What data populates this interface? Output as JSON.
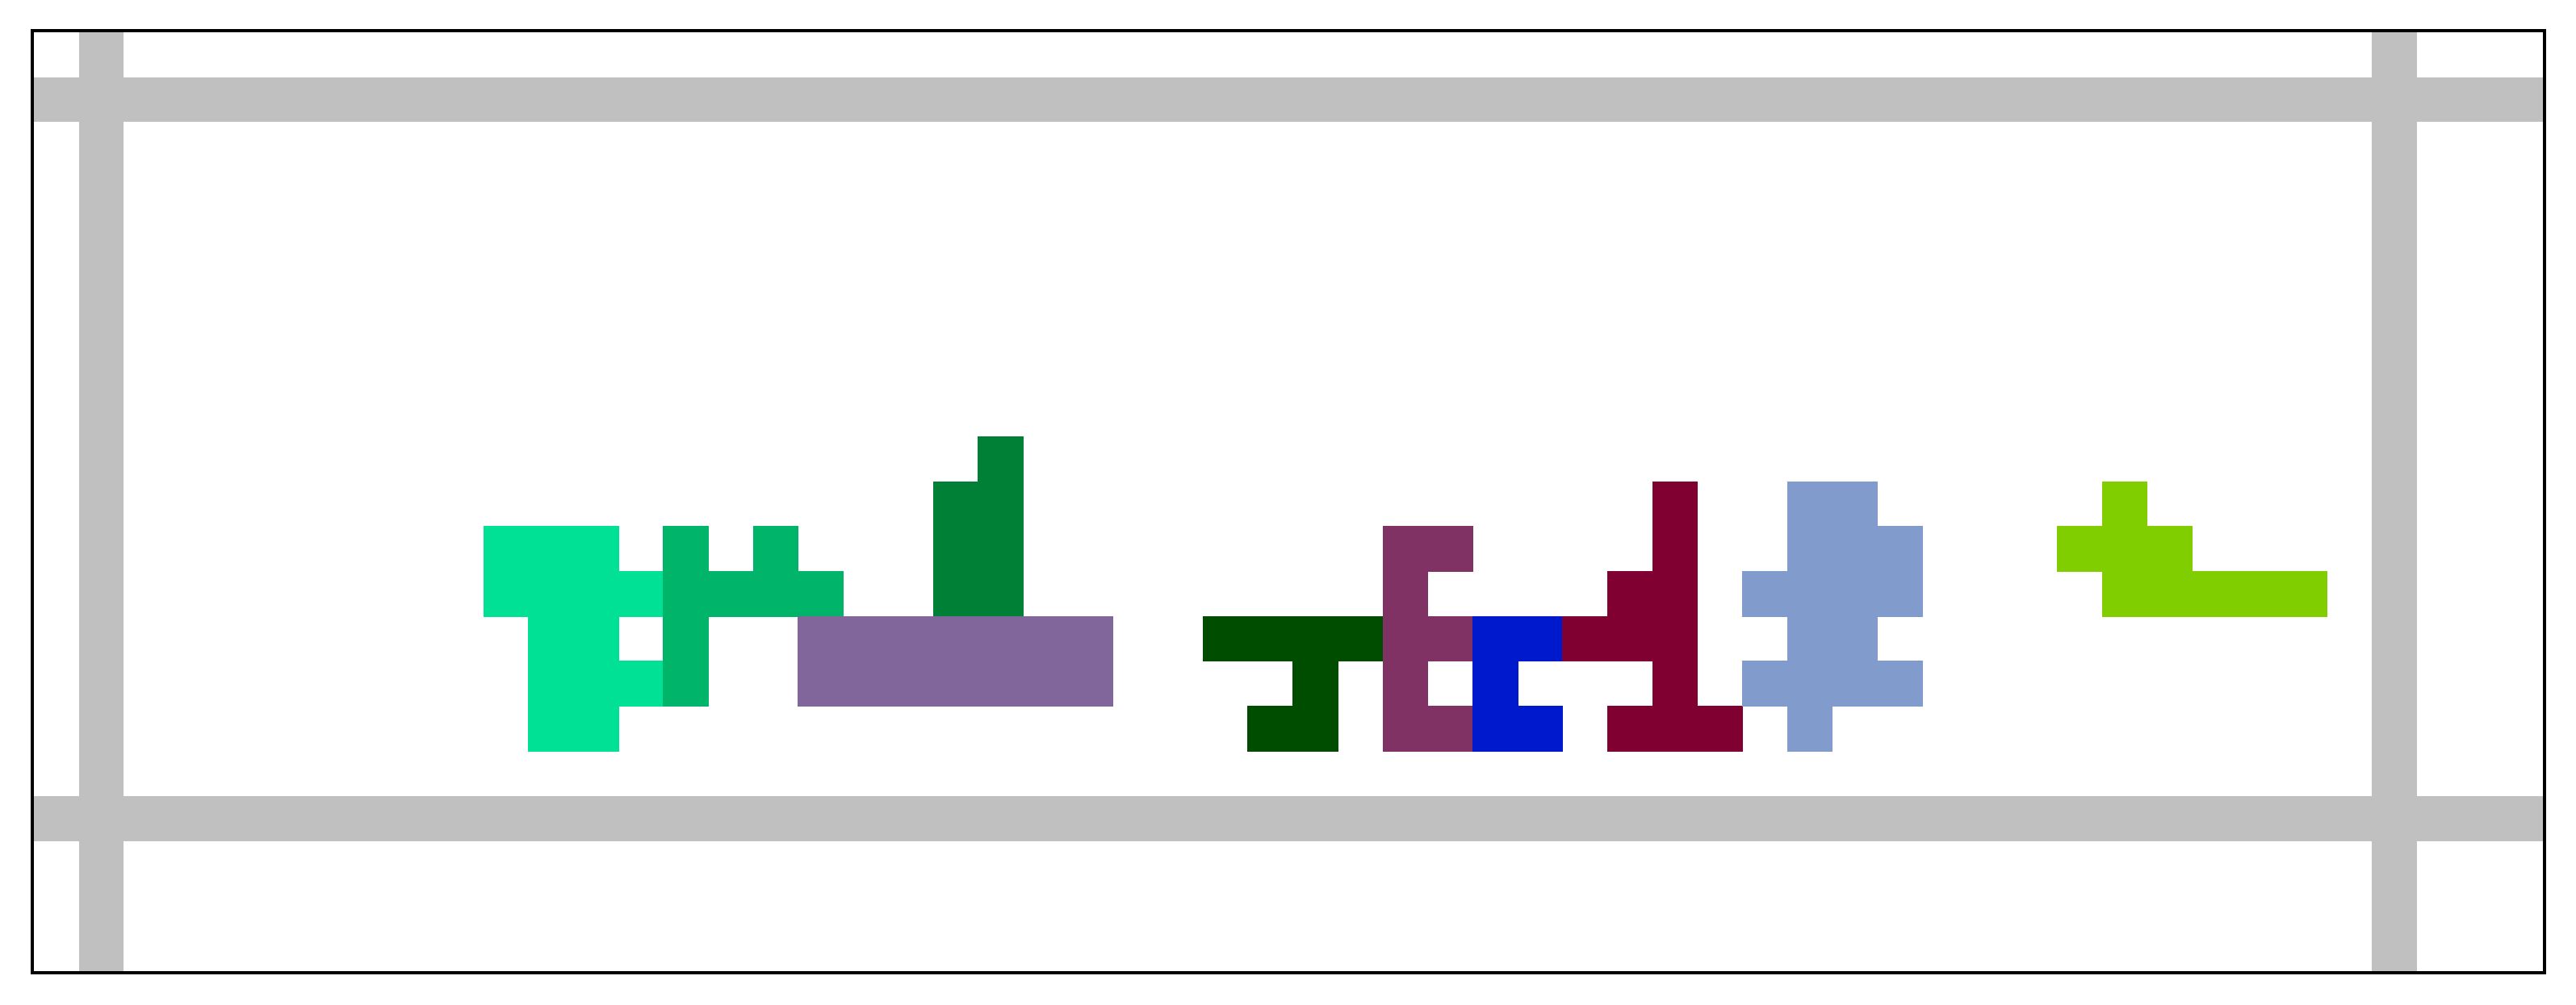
{
  "puzzle": {
    "background": "#ffffff",
    "frame_color": "#000000",
    "grid_line_color": "#c0c0c0",
    "grid": {
      "columns": 56,
      "rows": 21
    },
    "grid_lines": {
      "vertical_after_columns": [
        2,
        53
      ],
      "horizontal_after_rows": [
        2,
        18
      ]
    },
    "pieces": [
      {
        "id": "mint",
        "color": "#00e196",
        "cells": [
          [
            10,
            11
          ],
          [
            11,
            11
          ],
          [
            12,
            11
          ],
          [
            10,
            12
          ],
          [
            11,
            12
          ],
          [
            12,
            12
          ],
          [
            13,
            12
          ],
          [
            11,
            13
          ],
          [
            12,
            13
          ],
          [
            11,
            14
          ],
          [
            12,
            14
          ],
          [
            13,
            14
          ],
          [
            11,
            15
          ],
          [
            12,
            15
          ]
        ]
      },
      {
        "id": "jade",
        "color": "#00b46a",
        "cells": [
          [
            14,
            11
          ],
          [
            16,
            11
          ],
          [
            14,
            12
          ],
          [
            15,
            12
          ],
          [
            16,
            12
          ],
          [
            17,
            12
          ],
          [
            14,
            13
          ],
          [
            14,
            14
          ]
        ]
      },
      {
        "id": "forest-green",
        "color": "#008037",
        "cells": [
          [
            21,
            9
          ],
          [
            20,
            10
          ],
          [
            21,
            10
          ],
          [
            21,
            11
          ],
          [
            20,
            11
          ],
          [
            21,
            12
          ],
          [
            20,
            12
          ]
        ]
      },
      {
        "id": "lavender",
        "color": "#80669a",
        "cells": [
          [
            17,
            13
          ],
          [
            18,
            13
          ],
          [
            19,
            13
          ],
          [
            20,
            13
          ],
          [
            21,
            13
          ],
          [
            22,
            13
          ],
          [
            23,
            13
          ],
          [
            17,
            14
          ],
          [
            18,
            14
          ],
          [
            19,
            14
          ],
          [
            20,
            14
          ],
          [
            21,
            14
          ],
          [
            22,
            14
          ],
          [
            23,
            14
          ]
        ]
      },
      {
        "id": "dark-green",
        "color": "#004d00",
        "cells": [
          [
            26,
            13
          ],
          [
            27,
            13
          ],
          [
            28,
            13
          ],
          [
            29,
            13
          ],
          [
            28,
            14
          ],
          [
            27,
            15
          ],
          [
            28,
            15
          ]
        ]
      },
      {
        "id": "plum",
        "color": "#803264",
        "cells": [
          [
            30,
            11
          ],
          [
            31,
            11
          ],
          [
            30,
            12
          ],
          [
            30,
            13
          ],
          [
            31,
            13
          ],
          [
            30,
            14
          ],
          [
            30,
            15
          ],
          [
            31,
            15
          ]
        ]
      },
      {
        "id": "blue",
        "color": "#0019cd",
        "cells": [
          [
            32,
            13
          ],
          [
            33,
            13
          ],
          [
            32,
            14
          ],
          [
            32,
            15
          ],
          [
            33,
            15
          ]
        ]
      },
      {
        "id": "maroon",
        "color": "#800032",
        "cells": [
          [
            36,
            10
          ],
          [
            36,
            11
          ],
          [
            35,
            12
          ],
          [
            36,
            12
          ],
          [
            34,
            13
          ],
          [
            35,
            13
          ],
          [
            36,
            13
          ],
          [
            36,
            14
          ],
          [
            35,
            15
          ],
          [
            36,
            15
          ],
          [
            37,
            15
          ]
        ]
      },
      {
        "id": "periwinkle",
        "color": "#829bcd",
        "cells": [
          [
            39,
            10
          ],
          [
            40,
            10
          ],
          [
            39,
            11
          ],
          [
            40,
            11
          ],
          [
            41,
            11
          ],
          [
            38,
            12
          ],
          [
            39,
            12
          ],
          [
            40,
            12
          ],
          [
            41,
            12
          ],
          [
            39,
            13
          ],
          [
            40,
            13
          ],
          [
            38,
            14
          ],
          [
            39,
            14
          ],
          [
            40,
            14
          ],
          [
            41,
            14
          ],
          [
            39,
            15
          ]
        ]
      },
      {
        "id": "lime",
        "color": "#80cd00",
        "cells": [
          [
            46,
            10
          ],
          [
            45,
            11
          ],
          [
            46,
            11
          ],
          [
            47,
            11
          ],
          [
            46,
            12
          ],
          [
            47,
            12
          ],
          [
            48,
            12
          ],
          [
            49,
            12
          ],
          [
            50,
            12
          ]
        ]
      }
    ]
  }
}
